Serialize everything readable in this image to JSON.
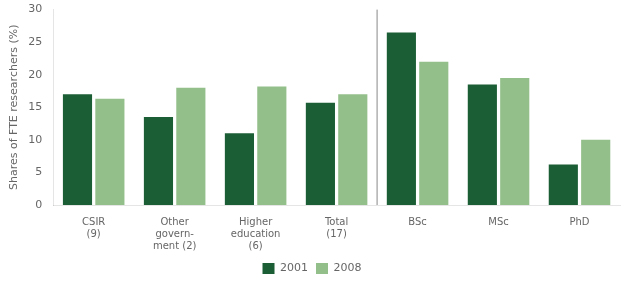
{
  "chart_data": {
    "type": "bar",
    "categories": [
      "CSIR\n(9)",
      "Other\ngovern-\nment (2)",
      "Higher\neducation\n(6)",
      "Total\n(17)",
      "BSc",
      "MSc",
      "PhD"
    ],
    "series": [
      {
        "name": "2001",
        "color": "#1b5e35",
        "values": [
          17.0,
          13.5,
          11.0,
          15.7,
          26.5,
          18.5,
          6.2
        ]
      },
      {
        "name": "2008",
        "color": "#93bf8a",
        "values": [
          16.3,
          18.0,
          18.2,
          17.0,
          22.0,
          19.5,
          10.0
        ]
      }
    ],
    "ylabel": "Shares of FTE researchers (%)",
    "ylim": [
      0,
      30
    ],
    "yticks": [
      0,
      5,
      10,
      15,
      20,
      25,
      30
    ],
    "grid": false,
    "legend": "bottom"
  }
}
